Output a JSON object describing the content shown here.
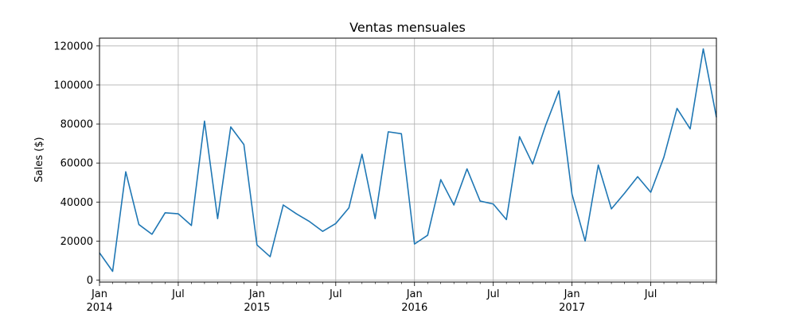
{
  "chart_data": {
    "type": "line",
    "title": "Ventas mensuales",
    "xlabel": "",
    "ylabel": "Sales ($)",
    "ylim": [
      -1000,
      124000
    ],
    "xlim": [
      "2014-01",
      "2017-12"
    ],
    "grid": true,
    "line_color": "#1f77b4",
    "y_ticks": [
      0,
      20000,
      40000,
      60000,
      80000,
      100000,
      120000
    ],
    "x_major_ticks": [
      {
        "date": "2014-01",
        "label": "Jan",
        "year": "2014"
      },
      {
        "date": "2014-07",
        "label": "Jul",
        "year": ""
      },
      {
        "date": "2015-01",
        "label": "Jan",
        "year": "2015"
      },
      {
        "date": "2015-07",
        "label": "Jul",
        "year": ""
      },
      {
        "date": "2016-01",
        "label": "Jan",
        "year": "2016"
      },
      {
        "date": "2016-07",
        "label": "Jul",
        "year": ""
      },
      {
        "date": "2017-01",
        "label": "Jan",
        "year": "2017"
      },
      {
        "date": "2017-07",
        "label": "Jul",
        "year": ""
      }
    ],
    "series": [
      {
        "x": [
          "2014-01",
          "2014-02",
          "2014-03",
          "2014-04",
          "2014-05",
          "2014-06",
          "2014-07",
          "2014-08",
          "2014-09",
          "2014-10",
          "2014-11",
          "2014-12",
          "2015-01",
          "2015-02",
          "2015-03",
          "2015-04",
          "2015-05",
          "2015-06",
          "2015-07",
          "2015-08",
          "2015-09",
          "2015-10",
          "2015-11",
          "2015-12",
          "2016-01",
          "2016-02",
          "2016-03",
          "2016-04",
          "2016-05",
          "2016-06",
          "2016-07",
          "2016-08",
          "2016-09",
          "2016-10",
          "2016-11",
          "2016-12",
          "2017-01",
          "2017-02",
          "2017-03",
          "2017-04",
          "2017-05",
          "2017-06",
          "2017-07",
          "2017-08",
          "2017-09",
          "2017-10",
          "2017-11",
          "2017-12"
        ],
        "values": [
          14000,
          4500,
          55500,
          28500,
          23500,
          34500,
          34000,
          28000,
          81500,
          31500,
          78500,
          69500,
          18000,
          12000,
          38500,
          34000,
          30000,
          25000,
          29000,
          37000,
          64500,
          31500,
          76000,
          75000,
          18500,
          23000,
          51500,
          38500,
          57000,
          40500,
          39000,
          31000,
          73500,
          59500,
          79500,
          97000,
          44000,
          20000,
          59000,
          36500,
          44500,
          53000,
          45000,
          63000,
          88000,
          77500,
          118500,
          83500
        ]
      }
    ]
  }
}
